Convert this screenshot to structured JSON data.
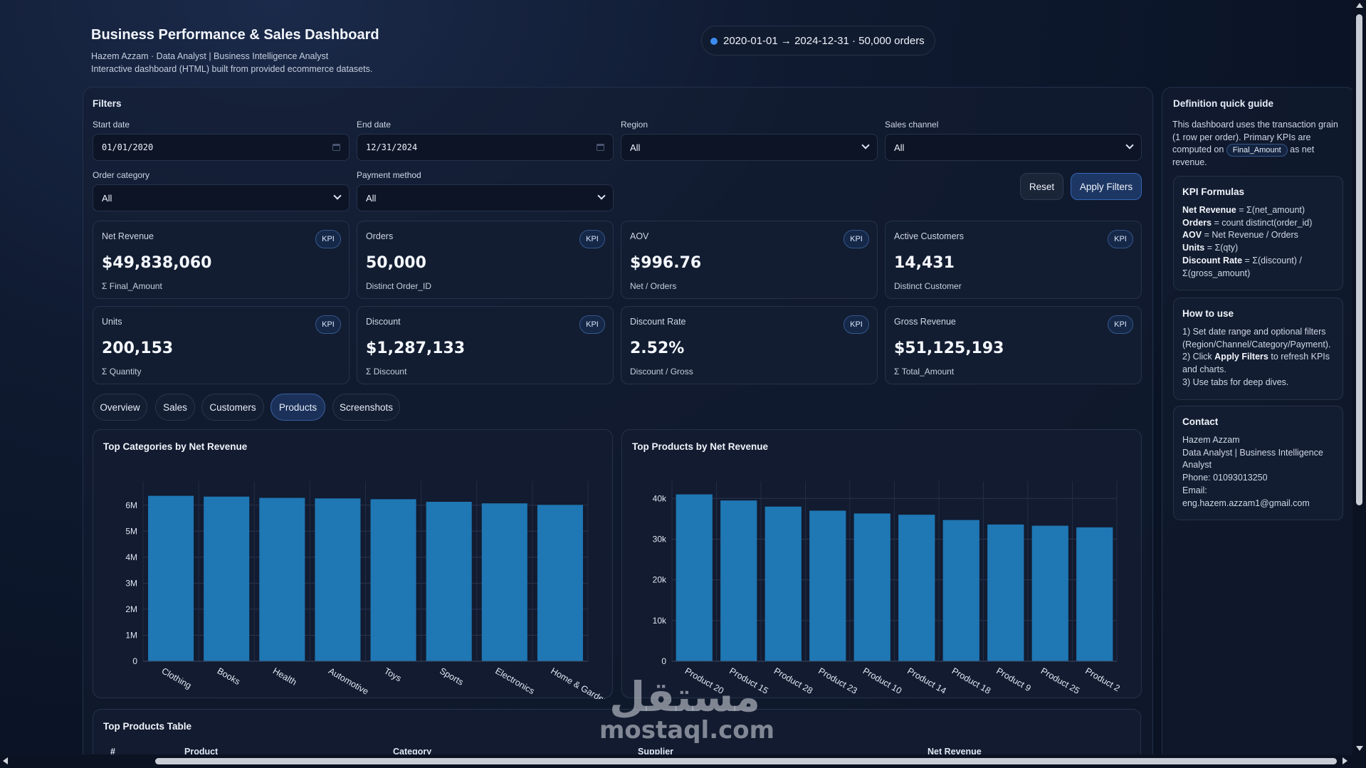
{
  "header": {
    "title": "Business Performance & Sales Dashboard",
    "subtitle": "Hazem Azzam · Data Analyst | Business Intelligence Analyst",
    "description": "Interactive dashboard (HTML) built from provided ecommerce datasets.",
    "range_pill": "2020-01-01 → 2024-12-31 · 50,000 orders"
  },
  "filters": {
    "title": "Filters",
    "start_label": "Start date",
    "start_value": "01/01/2020",
    "end_label": "End date",
    "end_value": "12/31/2024",
    "region_label": "Region",
    "region_value": "All",
    "channel_label": "Sales channel",
    "channel_value": "All",
    "category_label": "Order category",
    "category_value": "All",
    "payment_label": "Payment method",
    "payment_value": "All",
    "reset": "Reset",
    "apply": "Apply Filters"
  },
  "kpis": [
    {
      "label": "Net Revenue",
      "badge": "KPI",
      "value": "$49,838,060",
      "note": "Σ Final_Amount"
    },
    {
      "label": "Orders",
      "badge": "KPI",
      "value": "50,000",
      "note": "Distinct Order_ID"
    },
    {
      "label": "AOV",
      "badge": "KPI",
      "value": "$996.76",
      "note": "Net / Orders"
    },
    {
      "label": "Active Customers",
      "badge": "KPI",
      "value": "14,431",
      "note": "Distinct Customer"
    },
    {
      "label": "Units",
      "badge": "KPI",
      "value": "200,153",
      "note": "Σ Quantity"
    },
    {
      "label": "Discount",
      "badge": "KPI",
      "value": "$1,287,133",
      "note": "Σ Discount"
    },
    {
      "label": "Discount Rate",
      "badge": "KPI",
      "value": "2.52%",
      "note": "Discount / Gross"
    },
    {
      "label": "Gross Revenue",
      "badge": "KPI",
      "value": "$51,125,193",
      "note": "Σ Total_Amount"
    }
  ],
  "tabs": [
    "Overview",
    "Sales",
    "Customers",
    "Products",
    "Screenshots"
  ],
  "active_tab": "Products",
  "chart_data": [
    {
      "type": "bar",
      "title": "Top Categories by Net Revenue",
      "categories": [
        "Clothing",
        "Books",
        "Health",
        "Automotive",
        "Toys",
        "Sports",
        "Electronics",
        "Home & Garden"
      ],
      "values": [
        6360000,
        6330000,
        6280000,
        6260000,
        6230000,
        6130000,
        6070000,
        6010000
      ],
      "yticks": [
        "0",
        "1M",
        "2M",
        "3M",
        "4M",
        "5M",
        "6M"
      ],
      "ylim": [
        0,
        6650000
      ],
      "color": "#1f77b4",
      "grid": true
    },
    {
      "type": "bar",
      "title": "Top Products by Net Revenue",
      "categories": [
        "Product 20",
        "Product 15",
        "Product 28",
        "Product 23",
        "Product 10",
        "Product 14",
        "Product 18",
        "Product 9",
        "Product 25",
        "Product 2"
      ],
      "values": [
        41000,
        39500,
        38000,
        37000,
        36300,
        36000,
        34700,
        33600,
        33300,
        32900
      ],
      "yticks": [
        "0",
        "10k",
        "20k",
        "30k",
        "40k"
      ],
      "ylim": [
        0,
        42500
      ],
      "color": "#1f77b4",
      "grid": true
    }
  ],
  "table": {
    "title": "Top Products Table",
    "columns": [
      "#",
      "Product",
      "Category",
      "Supplier",
      "Net Revenue"
    ]
  },
  "sidebar": {
    "title": "Definition quick guide",
    "intro_a": "This dashboard uses the transaction grain (1 row per order). Primary KPIs are computed on",
    "intro_chip": "Final_Amount",
    "intro_b": "as net revenue.",
    "formulas_title": "KPI Formulas",
    "formulas": [
      {
        "term": "Net Revenue",
        "def": " = Σ(net_amount)"
      },
      {
        "term": "Orders",
        "def": " = count distinct(order_id)"
      },
      {
        "term": "AOV",
        "def": " = Net Revenue / Orders"
      },
      {
        "term": "Units",
        "def": " = Σ(qty)"
      },
      {
        "term": "Discount Rate",
        "def": " = Σ(discount) / Σ(gross_amount)"
      }
    ],
    "howto_title": "How to use",
    "howto_1": "1) Set date range and optional filters (Region/Channel/Category/Payment).",
    "howto_2a": "2) Click",
    "howto_2b": "Apply Filters",
    "howto_2c": "to refresh KPIs and charts.",
    "howto_3": "3) Use tabs for deep dives.",
    "contact_title": "Contact",
    "contact_name": "Hazem Azzam",
    "contact_role": "Data Analyst | Business Intelligence Analyst",
    "contact_phone": "Phone: 01093013250",
    "contact_email_label": "Email:",
    "contact_email": "eng.hazem.azzam1@gmail.com"
  },
  "watermark": {
    "arabic": "مستقل",
    "latin": "mostaql.com"
  }
}
